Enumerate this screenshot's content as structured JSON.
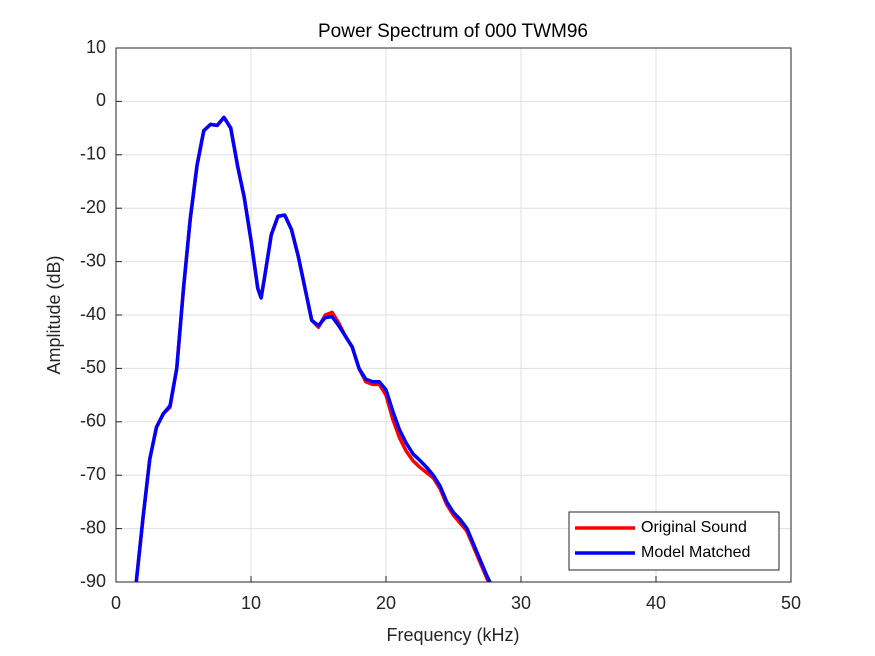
{
  "chart_data": {
    "type": "line",
    "title": "Power Spectrum of 000 TWM96",
    "xlabel": "Frequency (kHz)",
    "ylabel": "Amplitude (dB)",
    "xlim": [
      0,
      50
    ],
    "xticks": [
      0,
      10,
      20,
      30,
      40,
      50
    ],
    "ylim": [
      -90,
      10
    ],
    "yticks": [
      10,
      0,
      -10,
      -20,
      -30,
      -40,
      -50,
      -60,
      -70,
      -80,
      -90
    ],
    "grid": true,
    "legend": "lower right",
    "x": [
      1.5,
      2,
      2.5,
      3,
      3.5,
      4,
      4.5,
      5,
      5.5,
      6,
      6.5,
      7,
      7.5,
      8,
      8.5,
      9,
      9.5,
      10,
      10.5,
      10.75,
      11,
      11.5,
      12,
      12.5,
      13,
      13.5,
      14,
      14.5,
      15,
      15.5,
      16,
      16.5,
      17,
      17.5,
      18,
      18.5,
      19,
      19.5,
      20,
      20.5,
      21,
      21.5,
      22,
      22.5,
      23,
      23.5,
      24,
      24.5,
      25,
      25.5,
      26,
      26.5,
      27,
      27.5,
      28
    ],
    "series": [
      {
        "name": "Original Sound",
        "color": "#ff0000",
        "values": [
          -90,
          -78,
          -67,
          -61,
          -58.5,
          -57.3,
          -50,
          -35,
          -22,
          -12,
          -5.5,
          -4.3,
          -4.5,
          -3,
          -5,
          -12,
          -18,
          -26,
          -35,
          -36.8,
          -33,
          -25,
          -21.5,
          -21.3,
          -24,
          -29,
          -35,
          -41,
          -42.3,
          -40,
          -39.5,
          -41.5,
          -44,
          -46,
          -50,
          -52.5,
          -53,
          -53,
          -55,
          -59.5,
          -63,
          -65.5,
          -67.3,
          -68.5,
          -69.5,
          -70.5,
          -72.5,
          -75.5,
          -77.5,
          -79,
          -80.5,
          -83.5,
          -86.5,
          -89.5,
          -92
        ]
      },
      {
        "name": "Model Matched",
        "color": "#0000ff",
        "values": [
          -90,
          -78,
          -67,
          -61,
          -58.5,
          -57,
          -50,
          -35,
          -22,
          -12,
          -5.5,
          -4.3,
          -4.5,
          -3,
          -5,
          -12,
          -18,
          -26,
          -35,
          -36.8,
          -33,
          -25,
          -21.5,
          -21.3,
          -24,
          -29,
          -35,
          -41,
          -42,
          -40.5,
          -40.3,
          -42,
          -44,
          -46,
          -50,
          -52,
          -52.5,
          -52.5,
          -54,
          -58,
          -61.5,
          -64,
          -66,
          -67.2,
          -68.5,
          -70,
          -72,
          -75,
          -77,
          -78.3,
          -80,
          -83,
          -86,
          -89,
          -91.5
        ]
      }
    ]
  }
}
